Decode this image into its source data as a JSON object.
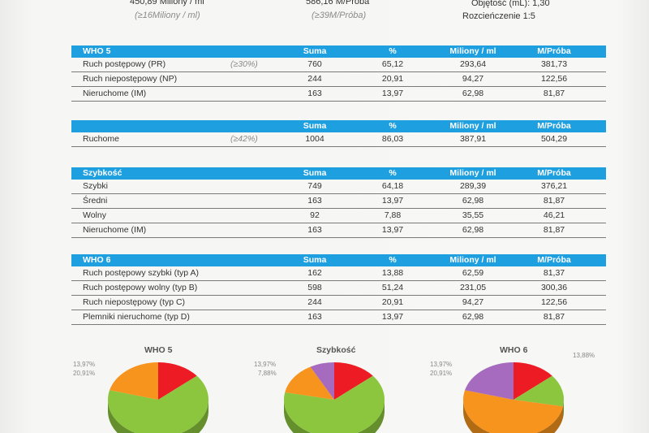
{
  "top": {
    "concentration": "450,89 Miliony / ml",
    "concentration_ref": "(≥16Miliony / ml)",
    "per_sample": "586,16 M/Próba",
    "per_sample_ref": "(≥39M/Próba)",
    "volume": "Objętość (mL): 1,30",
    "dilution": "Rozcieńczenie 1:5"
  },
  "columns": [
    "Suma",
    "%",
    "Miliony / ml",
    "M/Próba"
  ],
  "tables": [
    {
      "title": "WHO 5",
      "rows": [
        {
          "label": "Ruch postępowy (PR)",
          "ref": "(≥30%)",
          "values": [
            "760",
            "65,12",
            "293,64",
            "381,73"
          ]
        },
        {
          "label": "Ruch niepostępowy (NP)",
          "ref": "",
          "values": [
            "244",
            "20,91",
            "94,27",
            "122,56"
          ]
        },
        {
          "label": "Nieruchome (IM)",
          "ref": "",
          "values": [
            "163",
            "13,97",
            "62,98",
            "81,87"
          ]
        }
      ]
    },
    {
      "title": "",
      "rows": [
        {
          "label": "Ruchome",
          "ref": "(≥42%)",
          "values": [
            "1004",
            "86,03",
            "387,91",
            "504,29"
          ]
        }
      ]
    },
    {
      "title": "Szybkość",
      "rows": [
        {
          "label": "Szybki",
          "ref": "",
          "values": [
            "749",
            "64,18",
            "289,39",
            "376,21"
          ]
        },
        {
          "label": "Średni",
          "ref": "",
          "values": [
            "163",
            "13,97",
            "62,98",
            "81,87"
          ]
        },
        {
          "label": "Wolny",
          "ref": "",
          "values": [
            "92",
            "7,88",
            "35,55",
            "46,21"
          ]
        },
        {
          "label": "Nieruchome (IM)",
          "ref": "",
          "values": [
            "163",
            "13,97",
            "62,98",
            "81,87"
          ]
        }
      ]
    },
    {
      "title": "WHO 6",
      "rows": [
        {
          "label": "Ruch postępowy szybki (typ A)",
          "ref": "",
          "values": [
            "162",
            "13,88",
            "62,59",
            "81,37"
          ]
        },
        {
          "label": "Ruch postępowy wolny (typ B)",
          "ref": "",
          "values": [
            "598",
            "51,24",
            "231,05",
            "300,36"
          ]
        },
        {
          "label": "Ruch niepostępowy (typ C)",
          "ref": "",
          "values": [
            "244",
            "20,91",
            "94,27",
            "122,56"
          ]
        },
        {
          "label": "Plemniki nieruchome (typ D)",
          "ref": "",
          "values": [
            "163",
            "13,97",
            "62,98",
            "81,87"
          ]
        }
      ]
    }
  ],
  "chart_data": [
    {
      "type": "pie",
      "title": "WHO 5",
      "slices": [
        {
          "name": "Ruch postępowy (PR)",
          "value": 65.12,
          "color": "#8cc63f"
        },
        {
          "name": "Ruch niepostępowy (NP)",
          "value": 20.91,
          "color": "#f7941d"
        },
        {
          "name": "Nieruchome (IM)",
          "value": 13.97,
          "color": "#ed1c24"
        }
      ],
      "labels": [
        "13,97%",
        "20,91%"
      ]
    },
    {
      "type": "pie",
      "title": "Szybkość",
      "slices": [
        {
          "name": "Szybki",
          "value": 64.18,
          "color": "#8cc63f"
        },
        {
          "name": "Średni",
          "value": 13.97,
          "color": "#f7941d"
        },
        {
          "name": "Wolny",
          "value": 7.88,
          "color": "#a66bbe"
        },
        {
          "name": "Nieruchome (IM)",
          "value": 13.97,
          "color": "#ed1c24"
        }
      ],
      "labels": [
        "13,97%",
        "7,88%"
      ]
    },
    {
      "type": "pie",
      "title": "WHO 6",
      "slices": [
        {
          "name": "Ruch postępowy szybki (typ A)",
          "value": 13.88,
          "color": "#8cc63f"
        },
        {
          "name": "Ruch postępowy wolny (typ B)",
          "value": 51.24,
          "color": "#f7941d"
        },
        {
          "name": "Ruch niepostępowy (typ C)",
          "value": 20.91,
          "color": "#a66bbe"
        },
        {
          "name": "Plemniki nieruchome (typ D)",
          "value": 13.97,
          "color": "#ed1c24"
        }
      ],
      "labels": [
        "13,97%",
        "20,91%",
        "13,88%"
      ]
    }
  ]
}
